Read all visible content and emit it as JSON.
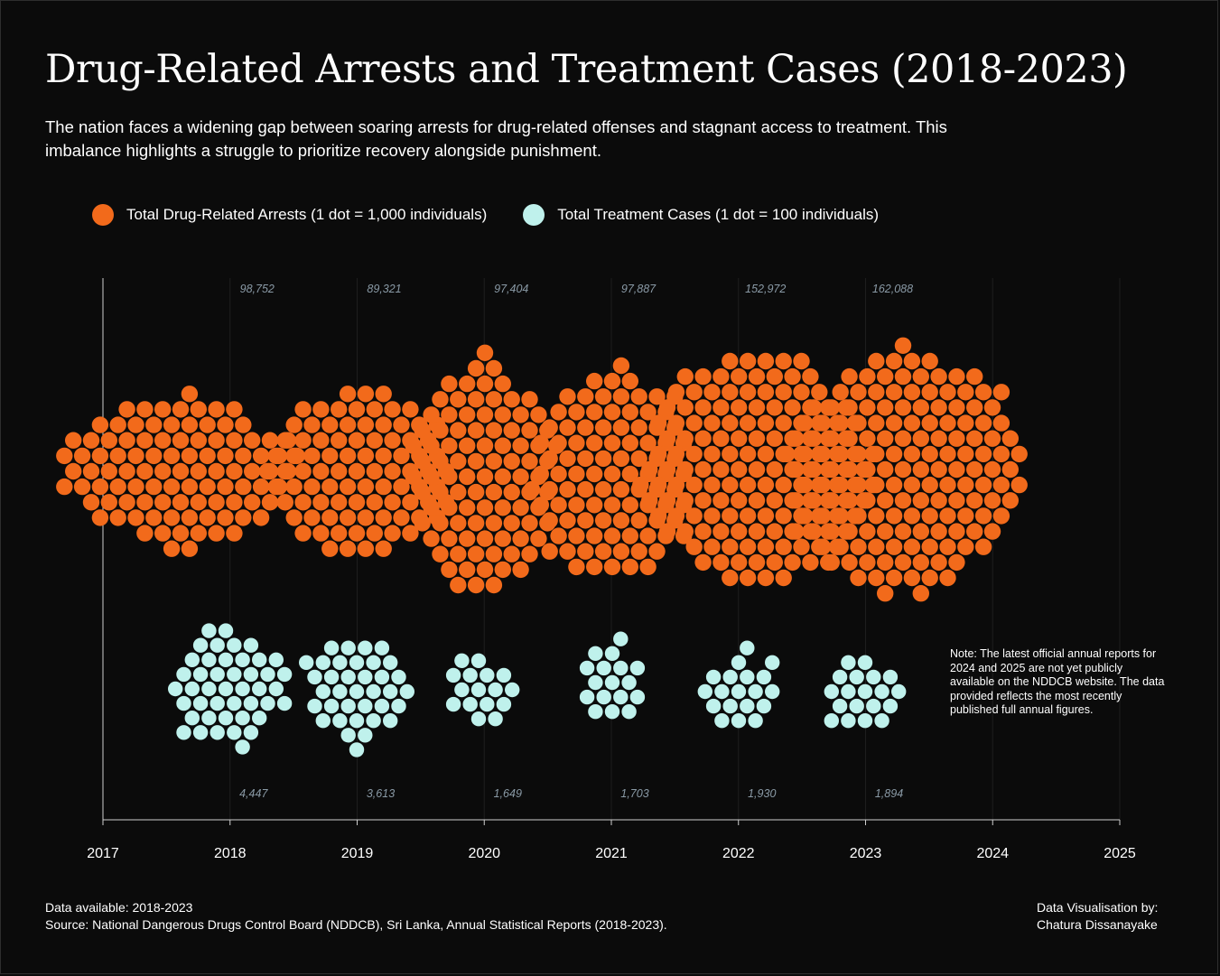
{
  "colors": {
    "background": "#0b0b0b",
    "arrests": "#f26a1b",
    "treatment": "#bff1ec",
    "value_label": "#8a9aa6"
  },
  "header": {
    "title": "Drug-Related Arrests and Treatment Cases (2018-2023)",
    "subtitle": "The nation faces a widening gap between soaring arrests for drug-related offenses and stagnant access to treatment. This imbalance highlights a struggle to prioritize recovery alongside punishment."
  },
  "chart_data": {
    "type": "scatter",
    "subtype": "dot-cluster (beeswarm) unit chart",
    "series": [
      {
        "name": "Total Drug-Related Arrests (1 dot = 1,000 individuals)",
        "unit_per_dot": 1000,
        "years": [
          2018,
          2019,
          2020,
          2021,
          2022,
          2023
        ],
        "values": [
          98752,
          89321,
          97404,
          97887,
          152972,
          162088
        ],
        "labels": [
          "98,752",
          "89,321",
          "97,404",
          "97,887",
          "152,972",
          "162,088"
        ]
      },
      {
        "name": "Total Treatment Cases (1 dot = 100 individuals)",
        "unit_per_dot": 100,
        "years": [
          2018,
          2019,
          2020,
          2021,
          2022,
          2023
        ],
        "values": [
          4447,
          3613,
          1649,
          1703,
          1930,
          1894
        ],
        "labels": [
          "4,447",
          "3,613",
          "1,649",
          "1,703",
          "1,930",
          "1,894"
        ]
      }
    ],
    "x_ticks": [
      "2017",
      "2018",
      "2019",
      "2020",
      "2021",
      "2022",
      "2023",
      "2024",
      "2025"
    ],
    "xlim": [
      2017,
      2025
    ],
    "legend_position": "top-left",
    "grid": "faint vertical lines at each year"
  },
  "note": "Note: The latest official annual reports for 2024 and 2025 are not yet publicly available on the NDDCB website. The data provided reflects the most recently published full annual figures.",
  "footer": {
    "availability": "Data available: 2018-2023",
    "source": "Source: National Dangerous Drugs Control Board (NDDCB), Sri Lanka, Annual Statistical Reports (2018-2023).",
    "credit_line1": "Data Visualisation by:",
    "credit_line2": "Chatura Dissanayake"
  }
}
